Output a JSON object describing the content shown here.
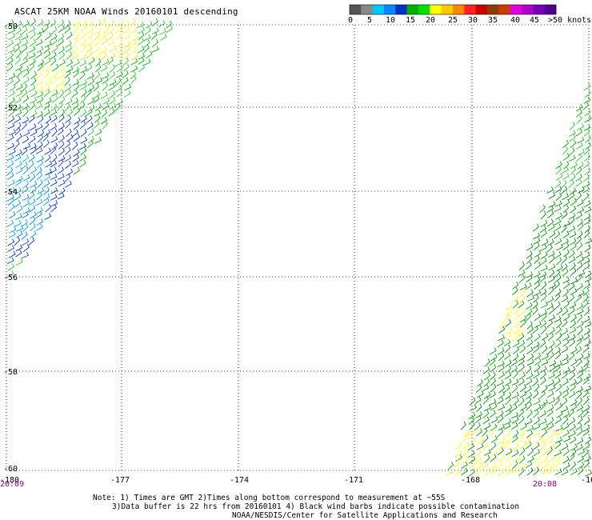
{
  "title": "ASCAT 25KM NOAA Winds 20160101 descending",
  "legend": {
    "colors": [
      "#555555",
      "#888888",
      "#00c8ff",
      "#0088ff",
      "#0030c8",
      "#00b000",
      "#00e000",
      "#ffff00",
      "#ffc800",
      "#ff8800",
      "#ff2020",
      "#c80000",
      "#8c3c00",
      "#c83c00",
      "#e000e0",
      "#b000c8",
      "#7800b4",
      "#500090"
    ],
    "labels": [
      "0",
      "5",
      "10",
      "15",
      "20",
      "25",
      "30",
      "35",
      "40",
      "45",
      ">50 knots"
    ]
  },
  "axes": {
    "lat_labels": [
      "-50",
      "-52",
      "-54",
      "-56",
      "-58",
      "-60"
    ],
    "lon_labels": [
      "-180",
      "-177",
      "-174",
      "-171",
      "-168",
      "-16"
    ]
  },
  "times": {
    "left": "20:09",
    "right": "20:08"
  },
  "notes": {
    "line1": "Note: 1) Times are GMT 2)Times along bottom correspond to measurement at ~55S",
    "line2": "3)Data buffer is 22 hrs from 20160101 4) Black wind barbs indicate possible contamination",
    "credit": "NOAA/NESDIS/Center for Satellite Applications and Research"
  }
}
